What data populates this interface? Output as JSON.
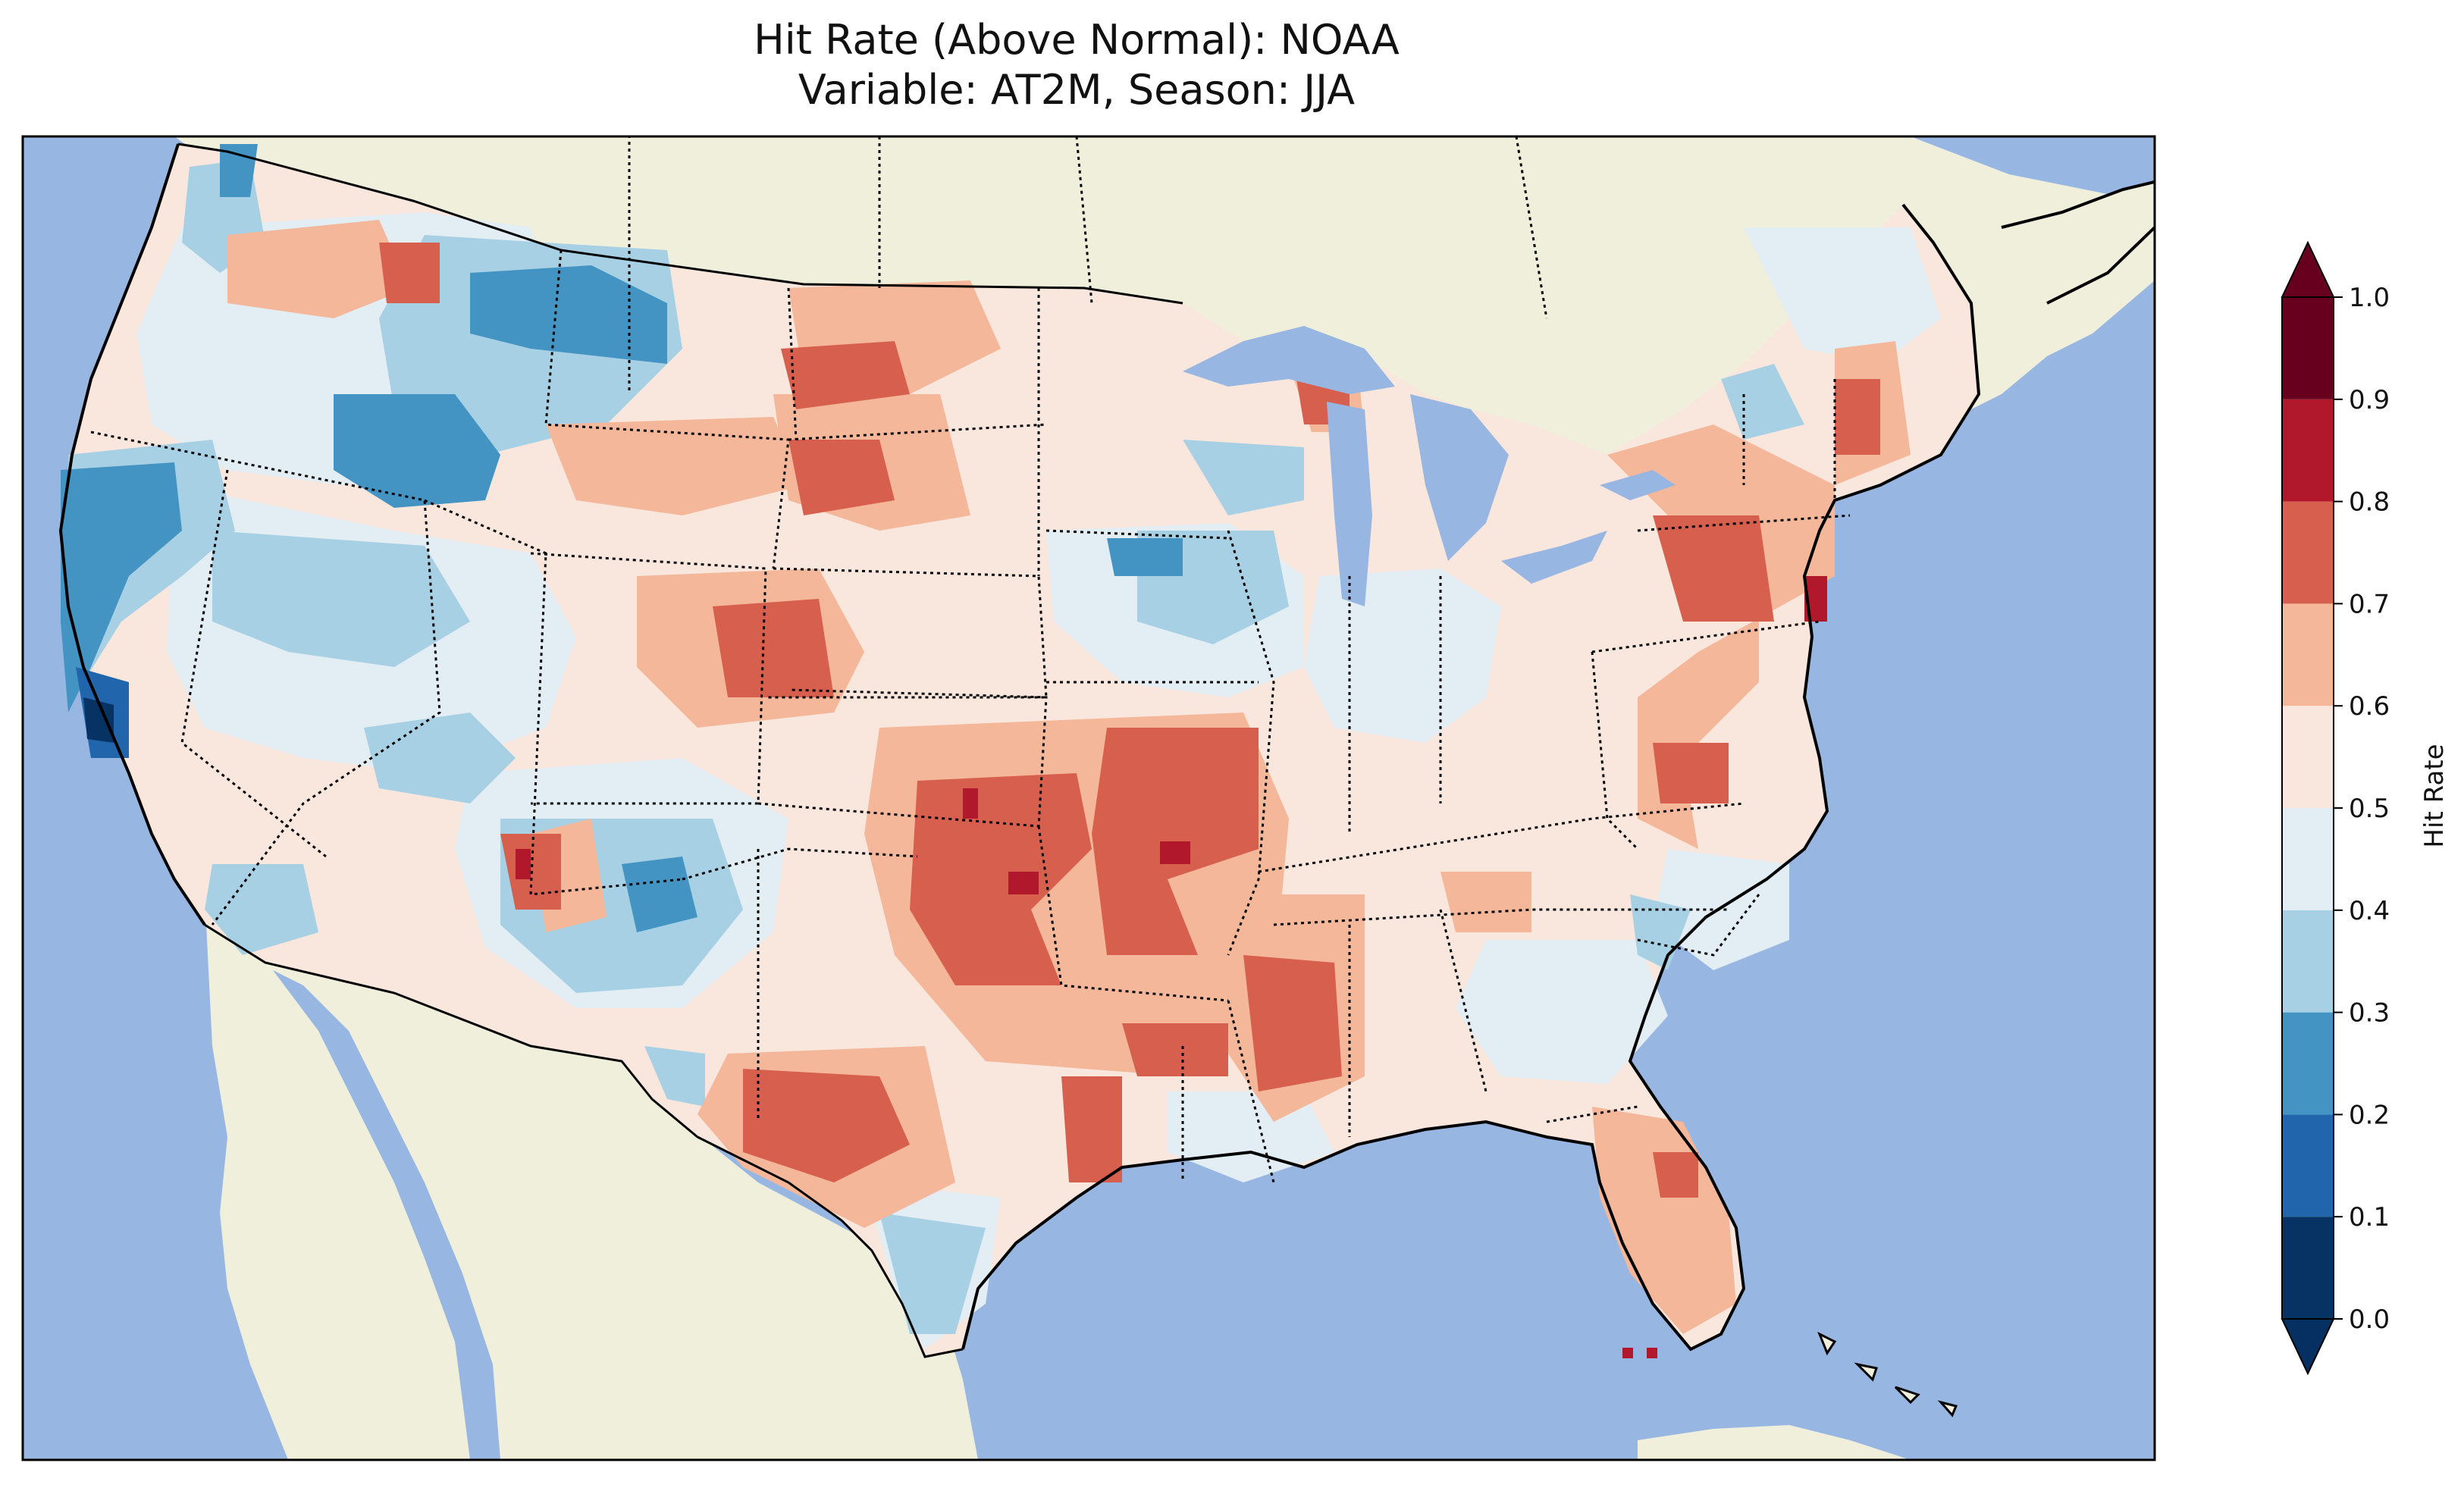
{
  "title": {
    "line1": "Hit Rate (Above Normal): NOAA",
    "line2": "Variable: AT2M, Season: JJA"
  },
  "colors": {
    "ocean": "#97b6e1",
    "land": "#efefdc",
    "coast": "#000000"
  },
  "colorbar": {
    "label": "Hit Rate",
    "extend": "both",
    "ticks": [
      "0.0",
      "0.1",
      "0.2",
      "0.3",
      "0.4",
      "0.5",
      "0.6",
      "0.7",
      "0.8",
      "0.9",
      "1.0"
    ],
    "bins": [
      {
        "from": 0.0,
        "to": 0.1,
        "color": "#063264"
      },
      {
        "from": 0.1,
        "to": 0.2,
        "color": "#2166ac"
      },
      {
        "from": 0.2,
        "to": 0.3,
        "color": "#4393c3"
      },
      {
        "from": 0.3,
        "to": 0.4,
        "color": "#a8d0e4"
      },
      {
        "from": 0.4,
        "to": 0.5,
        "color": "#e2edf4"
      },
      {
        "from": 0.5,
        "to": 0.6,
        "color": "#f9e6dd"
      },
      {
        "from": 0.6,
        "to": 0.7,
        "color": "#f4b799"
      },
      {
        "from": 0.7,
        "to": 0.8,
        "color": "#d6604d"
      },
      {
        "from": 0.8,
        "to": 0.9,
        "color": "#b2182b"
      },
      {
        "from": 0.9,
        "to": 1.0,
        "color": "#67001f"
      }
    ],
    "under_color": "#053061",
    "over_color": "#67001f"
  }
}
